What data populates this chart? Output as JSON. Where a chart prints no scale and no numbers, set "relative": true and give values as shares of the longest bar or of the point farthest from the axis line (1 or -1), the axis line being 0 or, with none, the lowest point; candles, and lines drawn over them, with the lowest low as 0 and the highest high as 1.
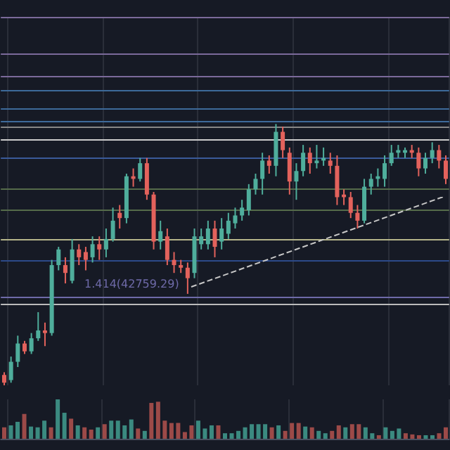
{
  "chart_data": [
    {
      "type": "candlestick",
      "relative": true,
      "grid": "x",
      "categories": [
        null,
        null,
        null,
        null,
        null,
        null,
        null,
        null,
        null,
        null,
        null,
        null,
        null,
        null,
        null,
        null,
        null,
        null,
        null,
        null,
        null,
        null,
        null,
        null,
        null,
        null,
        null,
        null,
        null,
        null,
        null,
        null,
        null,
        null,
        null,
        null,
        null,
        null,
        null,
        null,
        null,
        null,
        null,
        null,
        null,
        null,
        null,
        null,
        null,
        null,
        null,
        null,
        null,
        null,
        null,
        null,
        null,
        null,
        null,
        null,
        null,
        null,
        null,
        null,
        null,
        null
      ],
      "ohlc": [
        [
          0.04,
          0.05,
          0,
          0.01
        ],
        [
          0.02,
          0.11,
          0.01,
          0.09
        ],
        [
          0.09,
          0.19,
          0.07,
          0.16
        ],
        [
          0.16,
          0.17,
          0.12,
          0.13
        ],
        [
          0.13,
          0.2,
          0.12,
          0.18
        ],
        [
          0.18,
          0.28,
          0.17,
          0.21
        ],
        [
          0.21,
          0.24,
          0.15,
          0.2
        ],
        [
          0.2,
          0.48,
          0.19,
          0.46
        ],
        [
          0.46,
          0.53,
          0.44,
          0.52
        ],
        [
          0.46,
          0.49,
          0.39,
          0.43
        ],
        [
          0.4,
          0.56,
          0.39,
          0.52
        ],
        [
          0.52,
          0.54,
          0.46,
          0.49
        ],
        [
          0.51,
          0.53,
          0.44,
          0.48
        ],
        [
          0.49,
          0.57,
          0.47,
          0.54
        ],
        [
          0.54,
          0.57,
          0.48,
          0.52
        ],
        [
          0.52,
          0.6,
          0.49,
          0.56
        ],
        [
          0.56,
          0.68,
          0.55,
          0.63
        ],
        [
          0.66,
          0.69,
          0.6,
          0.64
        ],
        [
          0.64,
          0.81,
          0.62,
          0.8
        ],
        [
          0.8,
          0.83,
          0.76,
          0.79
        ],
        [
          0.79,
          0.87,
          0.78,
          0.85
        ],
        [
          0.85,
          0.87,
          0.71,
          0.73
        ],
        [
          0.73,
          0.74,
          0.52,
          0.55
        ],
        [
          0.55,
          0.63,
          0.52,
          0.59
        ],
        [
          0.57,
          0.6,
          0.46,
          0.48
        ],
        [
          0.48,
          0.51,
          0.43,
          0.46
        ],
        [
          0.46,
          0.48,
          0.43,
          0.45
        ],
        [
          0.45,
          0.47,
          0.35,
          0.41
        ],
        [
          0.43,
          0.6,
          0.41,
          0.57
        ],
        [
          0.54,
          0.6,
          0.52,
          0.57
        ],
        [
          0.54,
          0.63,
          0.52,
          0.6
        ],
        [
          0.6,
          0.63,
          0.49,
          0.53
        ],
        [
          0.55,
          0.64,
          0.52,
          0.6
        ],
        [
          0.58,
          0.66,
          0.56,
          0.63
        ],
        [
          0.62,
          0.68,
          0.6,
          0.65
        ],
        [
          0.65,
          0.71,
          0.63,
          0.68
        ],
        [
          0.67,
          0.77,
          0.65,
          0.75
        ],
        [
          0.75,
          0.81,
          0.73,
          0.79
        ],
        [
          0.79,
          0.89,
          0.73,
          0.86
        ],
        [
          0.86,
          0.88,
          0.81,
          0.84
        ],
        [
          0.84,
          1.0,
          0.8,
          0.97
        ],
        [
          0.97,
          0.99,
          0.87,
          0.9
        ],
        [
          0.89,
          0.91,
          0.73,
          0.78
        ],
        [
          0.78,
          0.85,
          0.71,
          0.82
        ],
        [
          0.82,
          0.92,
          0.8,
          0.89
        ],
        [
          0.89,
          0.91,
          0.81,
          0.85
        ],
        [
          0.85,
          0.92,
          0.83,
          0.86
        ],
        [
          0.86,
          0.91,
          0.84,
          0.87
        ],
        [
          0.86,
          0.89,
          0.81,
          0.84
        ],
        [
          0.84,
          0.88,
          0.69,
          0.72
        ],
        [
          0.73,
          0.75,
          0.69,
          0.72
        ],
        [
          0.72,
          0.74,
          0.64,
          0.66
        ],
        [
          0.66,
          0.69,
          0.6,
          0.63
        ],
        [
          0.63,
          0.79,
          0.62,
          0.76
        ],
        [
          0.76,
          0.81,
          0.73,
          0.79
        ],
        [
          0.79,
          0.83,
          0.76,
          0.8
        ],
        [
          0.79,
          0.88,
          0.76,
          0.85
        ],
        [
          0.85,
          0.92,
          0.84,
          0.89
        ],
        [
          0.89,
          0.92,
          0.87,
          0.9
        ],
        [
          0.89,
          0.91,
          0.87,
          0.9
        ],
        [
          0.9,
          0.92,
          0.87,
          0.89
        ],
        [
          0.89,
          0.91,
          0.8,
          0.83
        ],
        [
          0.83,
          0.89,
          0.81,
          0.87
        ],
        [
          0.87,
          0.93,
          0.85,
          0.9
        ],
        [
          0.9,
          0.92,
          0.83,
          0.86
        ],
        [
          0.86,
          0.88,
          0.77,
          0.79
        ]
      ],
      "colors": [
        "#e3625c",
        "#4fae9c",
        "#4fae9c",
        "#e3625c",
        "#4fae9c",
        "#4fae9c",
        "#e3625c",
        "#4fae9c",
        "#4fae9c",
        "#e3625c",
        "#4fae9c",
        "#e3625c",
        "#e3625c",
        "#4fae9c",
        "#e3625c",
        "#4fae9c",
        "#4fae9c",
        "#e3625c",
        "#4fae9c",
        "#e3625c",
        "#4fae9c",
        "#e3625c",
        "#e3625c",
        "#4fae9c",
        "#e3625c",
        "#e3625c",
        "#e3625c",
        "#e3625c",
        "#4fae9c",
        "#4fae9c",
        "#4fae9c",
        "#e3625c",
        "#4fae9c",
        "#4fae9c",
        "#4fae9c",
        "#4fae9c",
        "#4fae9c",
        "#4fae9c",
        "#4fae9c",
        "#e3625c",
        "#4fae9c",
        "#e3625c",
        "#e3625c",
        "#4fae9c",
        "#4fae9c",
        "#e3625c",
        "#4fae9c",
        "#4fae9c",
        "#e3625c",
        "#e3625c",
        "#e3625c",
        "#e3625c",
        "#e3625c",
        "#4fae9c",
        "#4fae9c",
        "#4fae9c",
        "#4fae9c",
        "#4fae9c",
        "#4fae9c",
        "#4fae9c",
        "#e3625c",
        "#e3625c",
        "#4fae9c",
        "#4fae9c",
        "#e3625c",
        "#e3625c"
      ],
      "annotations": [
        "1.414(42759.29)"
      ],
      "ref_lines": [
        {
          "axis": "y",
          "value": 1.41,
          "color": "#7b6a9a"
        },
        {
          "axis": "y",
          "value": 1.27,
          "color": "#7b6a9a"
        },
        {
          "axis": "y",
          "value": 1.18,
          "color": "#7b6a9a"
        },
        {
          "axis": "y",
          "value": 1.13,
          "color": "#3d6a9a"
        },
        {
          "axis": "y",
          "value": 1.06,
          "color": "#3d6a9a"
        },
        {
          "axis": "y",
          "value": 1.01,
          "color": "#3d6a9a"
        },
        {
          "axis": "y",
          "value": 0.99,
          "color": "#888888"
        },
        {
          "axis": "y",
          "value": 0.94,
          "color": "#cccccc"
        },
        {
          "axis": "y",
          "value": 0.87,
          "color": "#3a5a9a"
        },
        {
          "axis": "y",
          "value": 0.75,
          "color": "#556b4a"
        },
        {
          "axis": "y",
          "value": 0.67,
          "color": "#556b4a"
        },
        {
          "axis": "y",
          "value": 0.56,
          "color": "#b5b58a"
        },
        {
          "axis": "y",
          "value": 0.48,
          "color": "#2c4a8a"
        },
        {
          "axis": "y",
          "value": 0.34,
          "color": "#6e6aa8"
        },
        {
          "axis": "y",
          "value": 0.31,
          "color": "#bbbbbb"
        }
      ]
    },
    {
      "type": "bar",
      "relative": true,
      "grid": "x",
      "categories": [
        null,
        null,
        null,
        null,
        null,
        null,
        null,
        null,
        null,
        null,
        null,
        null,
        null,
        null,
        null,
        null,
        null,
        null,
        null,
        null,
        null,
        null,
        null,
        null,
        null,
        null,
        null,
        null,
        null,
        null,
        null,
        null,
        null,
        null,
        null,
        null,
        null,
        null,
        null,
        null,
        null,
        null,
        null,
        null,
        null,
        null,
        null,
        null,
        null,
        null,
        null,
        null,
        null,
        null,
        null,
        null,
        null,
        null,
        null,
        null,
        null,
        null,
        null,
        null,
        null,
        null,
        null
      ],
      "values": [
        0.29,
        0.34,
        0.43,
        0.63,
        0.31,
        0.29,
        0.46,
        0.29,
        1,
        0.66,
        0.51,
        0.34,
        0.29,
        0.23,
        0.29,
        0.37,
        0.46,
        0.46,
        0.34,
        0.49,
        0.26,
        0.2,
        0.91,
        0.94,
        0.46,
        0.4,
        0.4,
        0.17,
        0.34,
        0.46,
        0.26,
        0.34,
        0.34,
        0.14,
        0.14,
        0.2,
        0.29,
        0.37,
        0.37,
        0.37,
        0.29,
        0.34,
        0.2,
        0.4,
        0.4,
        0.31,
        0.29,
        0.2,
        0.14,
        0.2,
        0.34,
        0.29,
        0.37,
        0.37,
        0.29,
        0.14,
        0.09,
        0.29,
        0.2,
        0.26,
        0.14,
        0.11,
        0.09,
        0.09,
        0.09,
        0.14,
        0.29
      ],
      "colors": [
        "#9c4a48",
        "#3b8a80",
        "#3b8a80",
        "#9c4a48",
        "#3b8a80",
        "#3b8a80",
        "#3b8a80",
        "#9c4a48",
        "#3b8a80",
        "#3b8a80",
        "#9c4a48",
        "#3b8a80",
        "#9c4a48",
        "#9c4a48",
        "#3b8a80",
        "#9c4a48",
        "#3b8a80",
        "#3b8a80",
        "#3b8a80",
        "#3b8a80",
        "#9c4a48",
        "#3b8a80",
        "#9c4a48",
        "#9c4a48",
        "#9c4a48",
        "#9c4a48",
        "#9c4a48",
        "#9c4a48",
        "#9c4a48",
        "#3b8a80",
        "#3b8a80",
        "#3b8a80",
        "#9c4a48",
        "#3b8a80",
        "#3b8a80",
        "#3b8a80",
        "#3b8a80",
        "#3b8a80",
        "#3b8a80",
        "#3b8a80",
        "#9c4a48",
        "#3b8a80",
        "#9c4a48",
        "#9c4a48",
        "#9c4a48",
        "#3b8a80",
        "#9c4a48",
        "#3b8a80",
        "#3b8a80",
        "#9c4a48",
        "#9c4a48",
        "#3b8a80",
        "#9c4a48",
        "#9c4a48",
        "#3b8a80",
        "#3b8a80",
        "#9c4a48",
        "#3b8a80",
        "#3b8a80",
        "#3b8a80",
        "#9c4a48",
        "#9c4a48",
        "#9c4a48",
        "#3b8a80",
        "#3b8a80",
        "#9c4a48",
        "#9c4a48"
      ]
    },
    {
      "type": "line",
      "relative": true,
      "categories": [
        null,
        null
      ],
      "series": [
        {
          "color": "#c8c8c8",
          "line_style": "dashed",
          "marker": "none",
          "values": [
            0,
            1
          ]
        }
      ]
    }
  ]
}
